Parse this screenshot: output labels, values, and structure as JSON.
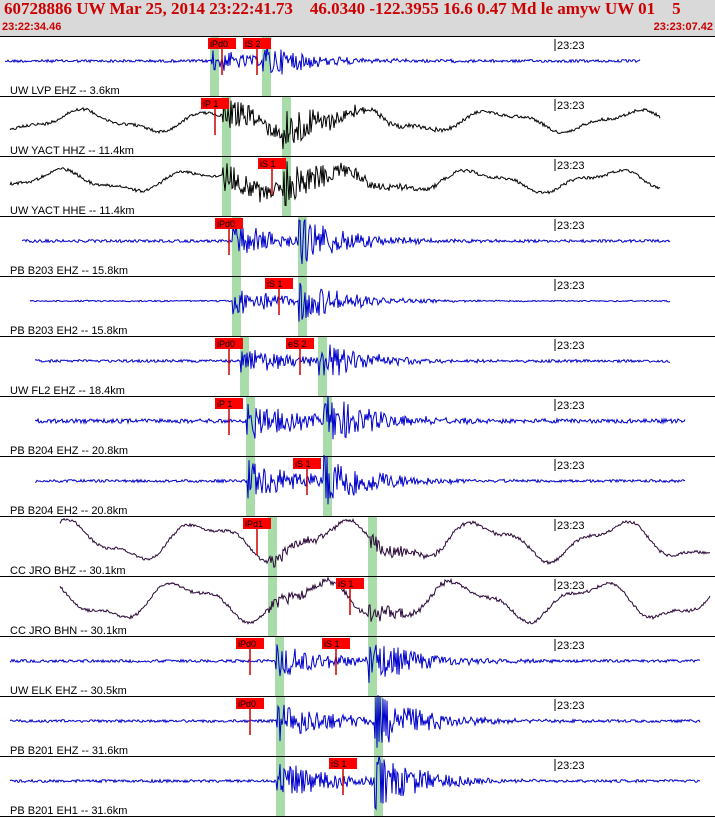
{
  "header": {
    "title": "60728886 UW Mar 25, 2014 23:22:41.73    46.0340 -122.3955 16.6 0.47 Md le amyw UW 01    5",
    "start_time": "23:22:34.46",
    "end_time": "23:23:07.42"
  },
  "colors": {
    "header_bg": "#d9d9d9",
    "header_text": "#cc0000",
    "trace_blue": "#0000cc",
    "trace_black": "#000000",
    "trace_purple": "#2a0838",
    "pick_label_bg": "#ff0000",
    "pick_line": "#cc0000",
    "window_green": "#a8dca8"
  },
  "chart_data": {
    "type": "line",
    "time_axis": {
      "start": "23:22:34.46",
      "end": "23:23:07.42",
      "tick_label": "23:23"
    },
    "traces": [
      {
        "station": "UW LVP EHZ -- 3.6km",
        "color": "blue",
        "amp": 2,
        "event_amp": 12,
        "window_end": 640,
        "picks": [
          {
            "label": "iPd0",
            "pos": 0.31
          },
          {
            "label": "iS 2",
            "pos": 0.36
          }
        ]
      },
      {
        "station": "UW YACT HHZ -- 11.4km",
        "color": "black",
        "amp": 10,
        "event_amp": 25,
        "window_end": 660,
        "picks": [
          {
            "label": "iP 1",
            "pos": 0.3
          }
        ]
      },
      {
        "station": "UW YACT HHE -- 11.4km",
        "color": "black",
        "amp": 10,
        "event_amp": 25,
        "window_end": 660,
        "picks": [
          {
            "label": "iS 1",
            "pos": 0.38
          }
        ]
      },
      {
        "station": "PB B203 EHZ -- 15.8km",
        "color": "blue",
        "amp": 2,
        "event_amp": 18,
        "window_end": 670,
        "picks": [
          {
            "label": "iPd0",
            "pos": 0.32
          }
        ]
      },
      {
        "station": "PB B203 EH2 -- 15.8km",
        "color": "blue",
        "amp": 1,
        "event_amp": 15,
        "window_end": 670,
        "picks": [
          {
            "label": "iS 1",
            "pos": 0.39
          }
        ]
      },
      {
        "station": "UW FL2 EHZ -- 18.4km",
        "color": "blue",
        "amp": 2,
        "event_amp": 15,
        "window_end": 670,
        "picks": [
          {
            "label": "iPd0",
            "pos": 0.32
          },
          {
            "label": "eS 2",
            "pos": 0.42
          }
        ]
      },
      {
        "station": "PB B204 EHZ -- 20.8km",
        "color": "blue",
        "amp": 3,
        "event_amp": 20,
        "window_end": 685,
        "picks": [
          {
            "label": "iP 1",
            "pos": 0.32
          }
        ]
      },
      {
        "station": "PB B204 EH2 -- 20.8km",
        "color": "blue",
        "amp": 2,
        "event_amp": 22,
        "window_end": 685,
        "picks": [
          {
            "label": "iS 1",
            "pos": 0.43
          }
        ]
      },
      {
        "station": "CC JRO BHZ -- 30.1km",
        "color": "purple",
        "amp": 18,
        "event_amp": 10,
        "window_end": 710,
        "picks": [
          {
            "label": "iPd1",
            "pos": 0.36
          }
        ]
      },
      {
        "station": "CC JRO BHN -- 30.1km",
        "color": "purple",
        "amp": 18,
        "event_amp": 10,
        "window_end": 710,
        "picks": [
          {
            "label": "iS 1",
            "pos": 0.49
          }
        ]
      },
      {
        "station": "UW ELK EHZ -- 30.5km",
        "color": "blue",
        "amp": 2,
        "event_amp": 18,
        "window_end": 700,
        "picks": [
          {
            "label": "iPd0",
            "pos": 0.35
          },
          {
            "label": "iS 1",
            "pos": 0.47
          }
        ]
      },
      {
        "station": "PB B201 EHZ -- 31.6km",
        "color": "blue",
        "amp": 2,
        "event_amp": 22,
        "window_end": 700,
        "picks": [
          {
            "label": "iPd0",
            "pos": 0.35
          }
        ]
      },
      {
        "station": "PB B201 EH1 -- 31.6km",
        "color": "blue",
        "amp": 2,
        "event_amp": 22,
        "window_end": 700,
        "picks": [
          {
            "label": "iS 1",
            "pos": 0.48
          }
        ]
      }
    ]
  }
}
